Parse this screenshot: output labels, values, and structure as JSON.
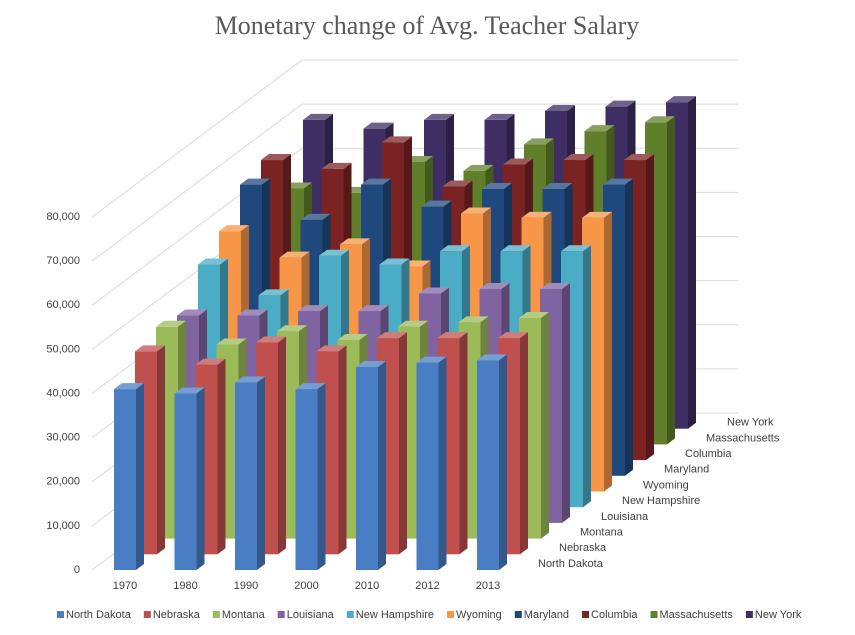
{
  "chart_data": {
    "type": "bar3d",
    "title": "Monetary change of Avg. Teacher Salary",
    "categories": [
      "1970",
      "1980",
      "1990",
      "2000",
      "2010",
      "2012",
      "2013"
    ],
    "series": [
      {
        "name": "North Dakota",
        "color": "#4a7ec4",
        "values": [
          41000,
          40000,
          42500,
          41000,
          46000,
          47000,
          47500
        ]
      },
      {
        "name": "Nebraska",
        "color": "#c0504d",
        "values": [
          46000,
          43000,
          48000,
          46000,
          49000,
          49000,
          49000
        ]
      },
      {
        "name": "Montana",
        "color": "#9bbb59",
        "values": [
          48000,
          44000,
          47000,
          45000,
          48000,
          49000,
          50000
        ]
      },
      {
        "name": "Louisiana",
        "color": "#8064a2",
        "values": [
          47000,
          47000,
          48000,
          48000,
          52000,
          53000,
          53000
        ]
      },
      {
        "name": "New Hampshire",
        "color": "#4bacc6",
        "values": [
          55000,
          48000,
          57000,
          55000,
          58000,
          58000,
          58000
        ]
      },
      {
        "name": "Wyoming",
        "color": "#f79646",
        "values": [
          59000,
          53000,
          56000,
          51000,
          63000,
          62000,
          62000
        ]
      },
      {
        "name": "Maryland",
        "color": "#1f497d",
        "values": [
          66000,
          58000,
          66000,
          61000,
          65000,
          65000,
          66000
        ]
      },
      {
        "name": "Columbia",
        "color": "#7b2323",
        "values": [
          68000,
          66000,
          72000,
          62000,
          67000,
          68000,
          68000
        ]
      },
      {
        "name": "Massachusetts",
        "color": "#5f7f2a",
        "values": [
          58000,
          57000,
          64000,
          62000,
          68000,
          71000,
          73000
        ]
      },
      {
        "name": "New York",
        "color": "#3f2e63",
        "values": [
          70000,
          68000,
          70000,
          70000,
          72000,
          73000,
          74000
        ]
      }
    ],
    "ylim": [
      0,
      80000
    ],
    "yticks": [
      0,
      {
        "value": 10000,
        "label": "10,000"
      },
      {
        "value": 20000,
        "label": "20,000"
      },
      {
        "value": 30000,
        "label": "30,000"
      },
      {
        "value": 40000,
        "label": "40,000"
      },
      {
        "value": 50000,
        "label": "50,000"
      },
      {
        "value": 60000,
        "label": "60,000"
      },
      {
        "value": 70000,
        "label": "70,000"
      },
      {
        "value": 80000,
        "label": "80,000"
      }
    ],
    "grid": true,
    "legend": "bottom"
  }
}
